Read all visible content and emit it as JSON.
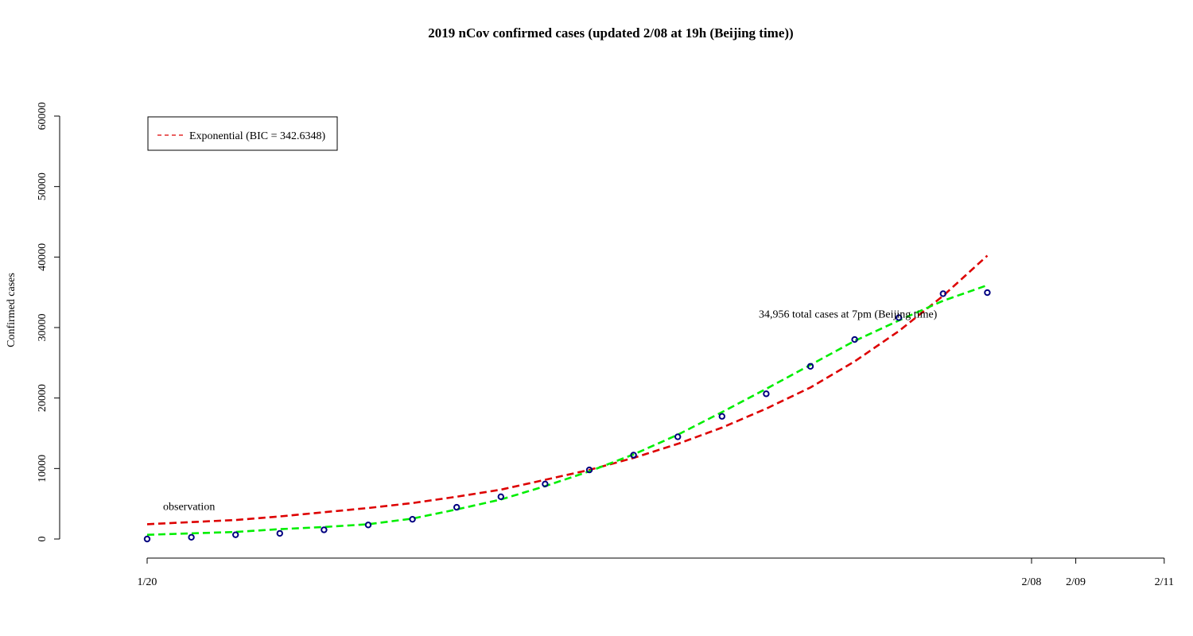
{
  "chart_data": {
    "type": "line",
    "title": "2019 nCov confirmed cases (updated 2/08 at 19h (Beijing time))",
    "ylabel": "Confirmed cases",
    "xlabel": "",
    "ylim": [
      0,
      60000
    ],
    "yticks": [
      "0",
      "10000",
      "20000",
      "30000",
      "40000",
      "50000",
      "60000"
    ],
    "xlim": [
      "1/20",
      "2/11"
    ],
    "xtick_labels": [
      "1/20",
      "2/08",
      "2/09",
      "2/11"
    ],
    "x_dates": [
      "1/20",
      "1/21",
      "1/22",
      "1/23",
      "1/24",
      "1/25",
      "1/26",
      "1/27",
      "1/28",
      "1/29",
      "1/30",
      "1/31",
      "2/01",
      "2/02",
      "2/03",
      "2/04",
      "2/05",
      "2/06",
      "2/07",
      "2/08"
    ],
    "series": [
      {
        "name": "observation",
        "style": "points",
        "color": "#000080",
        "values": [
          0,
          250,
          600,
          800,
          1300,
          2000,
          2800,
          4500,
          6000,
          7800,
          9800,
          11900,
          14500,
          17400,
          20600,
          24500,
          28300,
          31400,
          34800,
          34956
        ]
      },
      {
        "name": "Exponential (BIC = 342.6348)",
        "style": "dashed",
        "color": "#dd0000",
        "values": [
          2100,
          2400,
          2700,
          3200,
          3800,
          4400,
          5100,
          6000,
          7000,
          8400,
          9800,
          11500,
          13500,
          15800,
          18500,
          21500,
          25200,
          29500,
          34500,
          40200
        ]
      },
      {
        "name": "",
        "style": "dashed",
        "color": "#00ee00",
        "values": [
          600,
          800,
          1000,
          1400,
          1700,
          2100,
          2900,
          4200,
          5600,
          7500,
          9600,
          12000,
          14800,
          18000,
          21300,
          24700,
          28100,
          31000,
          33800,
          36000
        ]
      }
    ],
    "legend": {
      "placement": "top-left",
      "entries": [
        {
          "label": "Exponential (BIC = 342.6348)",
          "color": "#dd0000",
          "style": "dashed"
        }
      ]
    },
    "annotations": [
      {
        "text": "observation",
        "x": "1/20",
        "y": 4700
      },
      {
        "text": "34,956 total cases at 7pm (Beijing time)",
        "x": "2/03",
        "y": 32000
      }
    ],
    "grid": false
  }
}
